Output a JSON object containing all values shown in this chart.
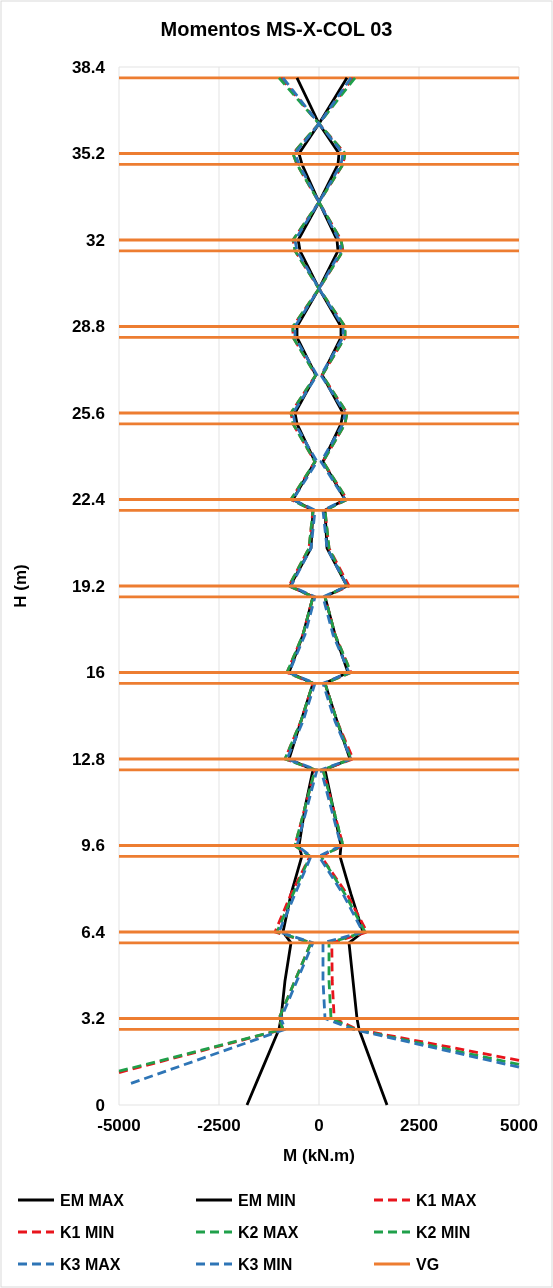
{
  "chart_data": {
    "type": "line",
    "title": "Momentos MS-X-COL 03",
    "xlabel": "M (kN.m)",
    "ylabel": "H (m)",
    "xlim": [
      -5000,
      5000
    ],
    "ylim": [
      0,
      38.4
    ],
    "xticks": [
      -5000,
      -2500,
      0,
      2500,
      5000
    ],
    "yticks": [
      0,
      3.2,
      6.4,
      9.6,
      12.8,
      16,
      19.2,
      22.4,
      25.6,
      28.8,
      32,
      35.2,
      38.4
    ],
    "grid": true,
    "legend": "bottom",
    "series": [
      {
        "color": "#ed7d31",
        "line_style": "solid",
        "x": [
          -5000,
          5000
        ],
        "values": [
          38.0,
          38.0
        ]
      },
      {
        "name": "EM MAX",
        "color": "#000000",
        "line_style": "solid",
        "x": [
          1700,
          1350,
          1000,
          950,
          850,
          750,
          1100,
          800,
          525,
          550,
          350,
          150,
          775,
          450,
          150,
          725,
          400,
          150,
          700,
          200,
          150,
          650,
          100,
          550,
          600,
          80,
          550,
          550,
          0,
          -475,
          -520,
          0,
          475,
          500,
          0,
          -550
        ],
        "values": [
          0,
          1.4,
          2.8,
          3.2,
          4.6,
          6.0,
          6.4,
          7.8,
          9.2,
          9.6,
          11,
          12.4,
          12.8,
          14.2,
          15.6,
          16,
          17.4,
          18.8,
          19.2,
          20.6,
          22.0,
          22.4,
          23.8,
          25.2,
          25.6,
          27,
          28.4,
          28.8,
          30.2,
          31.6,
          32,
          33.4,
          34.8,
          35.2,
          36.3,
          38.0
        ]
      },
      {
        "name": "EM MIN",
        "color": "#000000",
        "line_style": "solid",
        "x": [
          -1800,
          -1400,
          -1000,
          -950,
          -850,
          -700,
          -900,
          -700,
          -430,
          -500,
          -350,
          -150,
          -750,
          -450,
          -150,
          -750,
          -400,
          -150,
          -725,
          -200,
          -150,
          -650,
          -100,
          -550,
          -600,
          -80,
          -550,
          -550,
          0,
          475,
          450,
          0,
          -425,
          -500,
          0,
          700
        ],
        "values": [
          0,
          1.4,
          2.8,
          3.2,
          4.6,
          6.0,
          6.4,
          7.8,
          9.2,
          9.6,
          11,
          12.4,
          12.8,
          14.2,
          15.6,
          16,
          17.4,
          18.8,
          19.2,
          20.6,
          22.0,
          22.4,
          23.8,
          25.2,
          25.6,
          27,
          28.4,
          28.8,
          30.2,
          31.6,
          32,
          33.4,
          34.8,
          35.2,
          36.3,
          38.0
        ]
      },
      {
        "name": "K1 MAX",
        "color": "#e8141c",
        "line_style": "dashed",
        "x": [
          5000,
          950,
          380,
          330,
          320,
          1200,
          700,
          50,
          600,
          350,
          100,
          850,
          450,
          150,
          800,
          400,
          150,
          750,
          250,
          150,
          700,
          100,
          650,
          700,
          80,
          650,
          650,
          0,
          -600,
          -650,
          0,
          600,
          650,
          0,
          -950
        ],
        "values": [
          1.65,
          2.8,
          3.2,
          4.6,
          6.0,
          6.4,
          7.8,
          9.2,
          9.6,
          11,
          12.4,
          12.8,
          14.2,
          15.6,
          16,
          17.4,
          18.8,
          19.2,
          20.6,
          22.0,
          22.4,
          23.8,
          25.2,
          25.6,
          27,
          28.4,
          28.8,
          30.2,
          31.6,
          32,
          33.4,
          34.8,
          35.2,
          36.3,
          38.0
        ]
      },
      {
        "name": "K1 MIN",
        "color": "#e8141c",
        "line_style": "dashed",
        "x": [
          -5000,
          -900,
          -1000,
          -600,
          -200,
          -1100,
          -700,
          -225,
          -600,
          -350,
          -100,
          -850,
          -450,
          -150,
          -800,
          -400,
          -150,
          -750,
          -250,
          -150,
          -700,
          -100,
          -650,
          -700,
          -80,
          -650,
          -650,
          0,
          600,
          550,
          0,
          -550,
          -650,
          0,
          850
        ],
        "values": [
          1.2,
          2.8,
          3.2,
          4.6,
          6.0,
          6.4,
          7.8,
          9.2,
          9.6,
          11,
          12.4,
          12.8,
          14.2,
          15.6,
          16,
          17.4,
          18.8,
          19.2,
          20.6,
          22.0,
          22.4,
          23.8,
          25.2,
          25.6,
          27,
          28.4,
          28.8,
          30.2,
          31.6,
          32,
          33.4,
          34.8,
          35.2,
          36.3,
          38.0
        ]
      },
      {
        "name": "K2 MAX",
        "color": "#1fa04a",
        "line_style": "dashed",
        "x": [
          5000,
          900,
          300,
          250,
          250,
          1150,
          650,
          50,
          600,
          350,
          100,
          800,
          450,
          150,
          800,
          400,
          150,
          700,
          250,
          150,
          700,
          100,
          650,
          700,
          80,
          650,
          650,
          0,
          -600,
          -650,
          0,
          600,
          650,
          0,
          -1000
        ],
        "values": [
          1.5,
          2.8,
          3.2,
          4.6,
          6.0,
          6.4,
          7.8,
          9.2,
          9.6,
          11,
          12.4,
          12.8,
          14.2,
          15.6,
          16,
          17.4,
          18.8,
          19.2,
          20.6,
          22.0,
          22.4,
          23.8,
          25.2,
          25.6,
          27,
          28.4,
          28.8,
          30.2,
          31.6,
          32,
          33.4,
          34.8,
          35.2,
          36.3,
          38.0
        ]
      },
      {
        "name": "K2 MIN",
        "color": "#1fa04a",
        "line_style": "dashed",
        "x": [
          -5000,
          -900,
          -1000,
          -600,
          -200,
          -1050,
          -650,
          -225,
          -600,
          -350,
          -100,
          -850,
          -450,
          -150,
          -800,
          -400,
          -150,
          -750,
          -250,
          -150,
          -700,
          -100,
          -650,
          -700,
          -80,
          -650,
          -650,
          0,
          600,
          550,
          0,
          -550,
          -650,
          0,
          900
        ],
        "values": [
          1.25,
          2.8,
          3.2,
          4.6,
          6.0,
          6.4,
          7.8,
          9.2,
          9.6,
          11,
          12.4,
          12.8,
          14.2,
          15.6,
          16,
          17.4,
          18.8,
          19.2,
          20.6,
          22.0,
          22.4,
          23.8,
          25.2,
          25.6,
          27,
          28.4,
          28.8,
          30.2,
          31.6,
          32,
          33.4,
          34.8,
          35.2,
          36.3,
          38.0
        ]
      },
      {
        "name": "K3 MAX",
        "color": "#2e75b6",
        "line_style": "dashed",
        "x": [
          5000,
          850,
          150,
          100,
          100,
          1100,
          600,
          0,
          550,
          300,
          50,
          800,
          400,
          100,
          750,
          350,
          100,
          700,
          200,
          100,
          650,
          50,
          600,
          650,
          50,
          600,
          600,
          0,
          -550,
          -600,
          0,
          550,
          600,
          0,
          -900
        ],
        "values": [
          1.4,
          2.8,
          3.2,
          4.6,
          6.0,
          6.4,
          7.8,
          9.2,
          9.6,
          11,
          12.4,
          12.8,
          14.2,
          15.6,
          16,
          17.4,
          18.8,
          19.2,
          20.6,
          22.0,
          22.4,
          23.8,
          25.2,
          25.6,
          27,
          28.4,
          28.8,
          30.2,
          31.6,
          32,
          33.4,
          34.8,
          35.2,
          36.3,
          38.0
        ]
      },
      {
        "name": "K3 MIN",
        "color": "#2e75b6",
        "line_style": "dashed",
        "x": [
          -4700,
          -850,
          -950,
          -550,
          -150,
          -1000,
          -600,
          -200,
          -550,
          -300,
          -50,
          -800,
          -400,
          -100,
          -750,
          -350,
          -100,
          -700,
          -200,
          -100,
          -650,
          -50,
          -600,
          -650,
          -50,
          -600,
          -600,
          0,
          550,
          500,
          0,
          -500,
          -600,
          0,
          800
        ],
        "values": [
          0.8,
          2.8,
          3.2,
          4.6,
          6.0,
          6.4,
          7.8,
          9.2,
          9.6,
          11,
          12.4,
          12.8,
          14.2,
          15.6,
          16,
          17.4,
          18.8,
          19.2,
          20.6,
          22.0,
          22.4,
          23.8,
          25.2,
          25.6,
          27,
          28.4,
          28.8,
          30.2,
          31.6,
          32,
          33.4,
          34.8,
          35.2,
          36.3,
          38.0
        ]
      },
      {
        "name": "VG",
        "color": "#ed7d31",
        "line_style": "solid",
        "x": [
          -5000,
          5000
        ],
        "values": [
          2.8,
          2.8
        ]
      },
      {
        "color": "#ed7d31",
        "line_style": "solid",
        "x": [
          -5000,
          5000
        ],
        "values": [
          3.2,
          3.2
        ]
      },
      {
        "color": "#ed7d31",
        "line_style": "solid",
        "x": [
          -5000,
          5000
        ],
        "values": [
          6.0,
          6.0
        ]
      },
      {
        "color": "#ed7d31",
        "line_style": "solid",
        "x": [
          -5000,
          5000
        ],
        "values": [
          6.4,
          6.4
        ]
      },
      {
        "color": "#ed7d31",
        "line_style": "solid",
        "x": [
          -5000,
          5000
        ],
        "values": [
          9.2,
          9.2
        ]
      },
      {
        "color": "#ed7d31",
        "line_style": "solid",
        "x": [
          -5000,
          5000
        ],
        "values": [
          9.6,
          9.6
        ]
      },
      {
        "color": "#ed7d31",
        "line_style": "solid",
        "x": [
          -5000,
          5000
        ],
        "values": [
          12.4,
          12.4
        ]
      },
      {
        "color": "#ed7d31",
        "line_style": "solid",
        "x": [
          -5000,
          5000
        ],
        "values": [
          12.8,
          12.8
        ]
      },
      {
        "color": "#ed7d31",
        "line_style": "solid",
        "x": [
          -5000,
          5000
        ],
        "values": [
          15.6,
          15.6
        ]
      },
      {
        "color": "#ed7d31",
        "line_style": "solid",
        "x": [
          -5000,
          5000
        ],
        "values": [
          16,
          16
        ]
      },
      {
        "color": "#ed7d31",
        "line_style": "solid",
        "x": [
          -5000,
          5000
        ],
        "values": [
          18.8,
          18.8
        ]
      },
      {
        "color": "#ed7d31",
        "line_style": "solid",
        "x": [
          -5000,
          5000
        ],
        "values": [
          19.2,
          19.2
        ]
      },
      {
        "color": "#ed7d31",
        "line_style": "solid",
        "x": [
          -5000,
          5000
        ],
        "values": [
          22.0,
          22.0
        ]
      },
      {
        "color": "#ed7d31",
        "line_style": "solid",
        "x": [
          -5000,
          5000
        ],
        "values": [
          22.4,
          22.4
        ]
      },
      {
        "color": "#ed7d31",
        "line_style": "solid",
        "x": [
          -5000,
          5000
        ],
        "values": [
          25.2,
          25.2
        ]
      },
      {
        "color": "#ed7d31",
        "line_style": "solid",
        "x": [
          -5000,
          5000
        ],
        "values": [
          25.6,
          25.6
        ]
      },
      {
        "color": "#ed7d31",
        "line_style": "solid",
        "x": [
          -5000,
          5000
        ],
        "values": [
          28.4,
          28.4
        ]
      },
      {
        "color": "#ed7d31",
        "line_style": "solid",
        "x": [
          -5000,
          5000
        ],
        "values": [
          28.8,
          28.8
        ]
      },
      {
        "color": "#ed7d31",
        "line_style": "solid",
        "x": [
          -5000,
          5000
        ],
        "values": [
          31.6,
          31.6
        ]
      },
      {
        "color": "#ed7d31",
        "line_style": "solid",
        "x": [
          -5000,
          5000
        ],
        "values": [
          32,
          32
        ]
      },
      {
        "color": "#ed7d31",
        "line_style": "solid",
        "x": [
          -5000,
          5000
        ],
        "values": [
          34.8,
          34.8
        ]
      },
      {
        "color": "#ed7d31",
        "line_style": "solid",
        "x": [
          -5000,
          5000
        ],
        "values": [
          35.2,
          35.2
        ]
      }
    ]
  }
}
